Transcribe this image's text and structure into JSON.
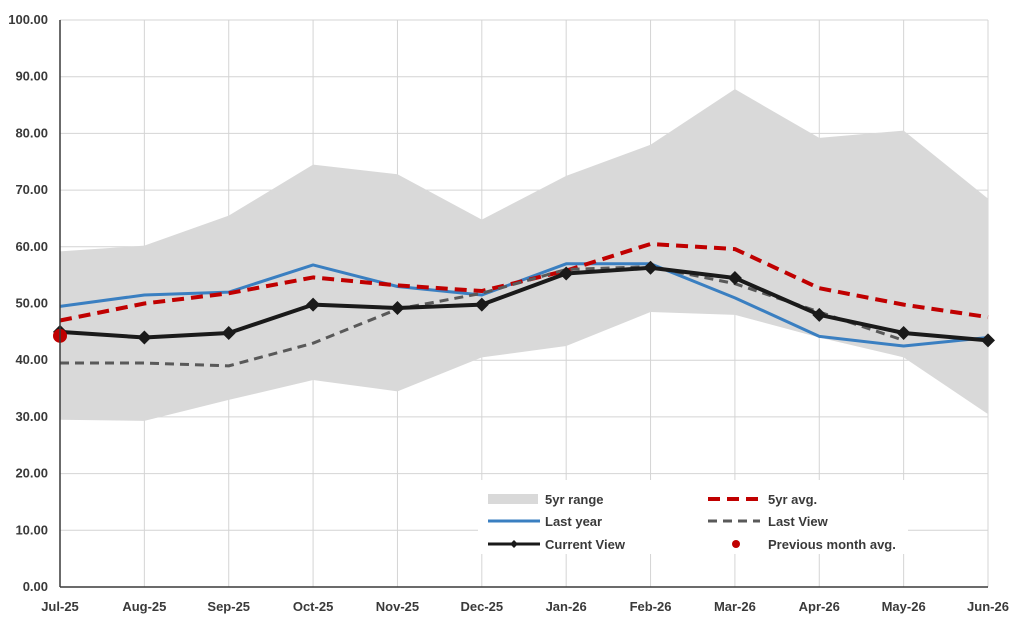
{
  "chart_data": {
    "type": "line",
    "title": "",
    "xlabel": "",
    "ylabel": "",
    "ylim": [
      0,
      100
    ],
    "y_ticks": [
      "0.00",
      "10.00",
      "20.00",
      "30.00",
      "40.00",
      "50.00",
      "60.00",
      "70.00",
      "80.00",
      "90.00",
      "100.00"
    ],
    "categories": [
      "Jul-25",
      "Aug-25",
      "Sep-25",
      "Oct-25",
      "Nov-25",
      "Dec-25",
      "Jan-26",
      "Feb-26",
      "Mar-26",
      "Apr-26",
      "May-26",
      "Jun-26"
    ],
    "range": {
      "name": "5yr range",
      "low": [
        29.5,
        29.3,
        33.0,
        36.5,
        34.5,
        40.5,
        42.5,
        48.5,
        48.0,
        44.0,
        40.5,
        30.5
      ],
      "high": [
        59.2,
        60.2,
        65.5,
        74.5,
        72.8,
        64.8,
        72.5,
        78.0,
        87.8,
        79.2,
        80.5,
        68.5
      ],
      "color": "#d9d9d9"
    },
    "series": [
      {
        "name": "5yr avg.",
        "style": "dashed",
        "color": "#c00000",
        "values": [
          47.0,
          50.0,
          51.8,
          54.6,
          53.2,
          52.2,
          55.8,
          60.5,
          59.6,
          52.7,
          49.8,
          47.6
        ]
      },
      {
        "name": "Last year",
        "style": "solid",
        "color": "#3a7fc1",
        "values": [
          49.5,
          51.5,
          52.0,
          56.8,
          53.0,
          51.5,
          57.0,
          57.0,
          51.0,
          44.2,
          42.5,
          44.0
        ]
      },
      {
        "name": "Last View",
        "style": "dashed",
        "color": "#595959",
        "values": [
          39.5,
          39.5,
          39.0,
          43.0,
          49.0,
          51.8,
          56.0,
          56.5,
          53.5,
          48.5,
          43.5,
          null
        ]
      },
      {
        "name": "Current View",
        "style": "solid-markers",
        "color": "#1a1a1a",
        "values": [
          45.0,
          44.0,
          44.8,
          49.8,
          49.2,
          49.8,
          55.3,
          56.3,
          54.5,
          48.0,
          44.8,
          43.5
        ]
      }
    ],
    "previous_month_avg": {
      "name": "Previous month avg.",
      "category": "Jul-25",
      "value": 44.3,
      "color": "#c00000"
    },
    "legend": {
      "placement": "bottom-center",
      "items": [
        "5yr range",
        "5yr avg.",
        "Last year",
        "Last View",
        "Current View",
        "Previous month avg."
      ]
    },
    "grid": true
  }
}
